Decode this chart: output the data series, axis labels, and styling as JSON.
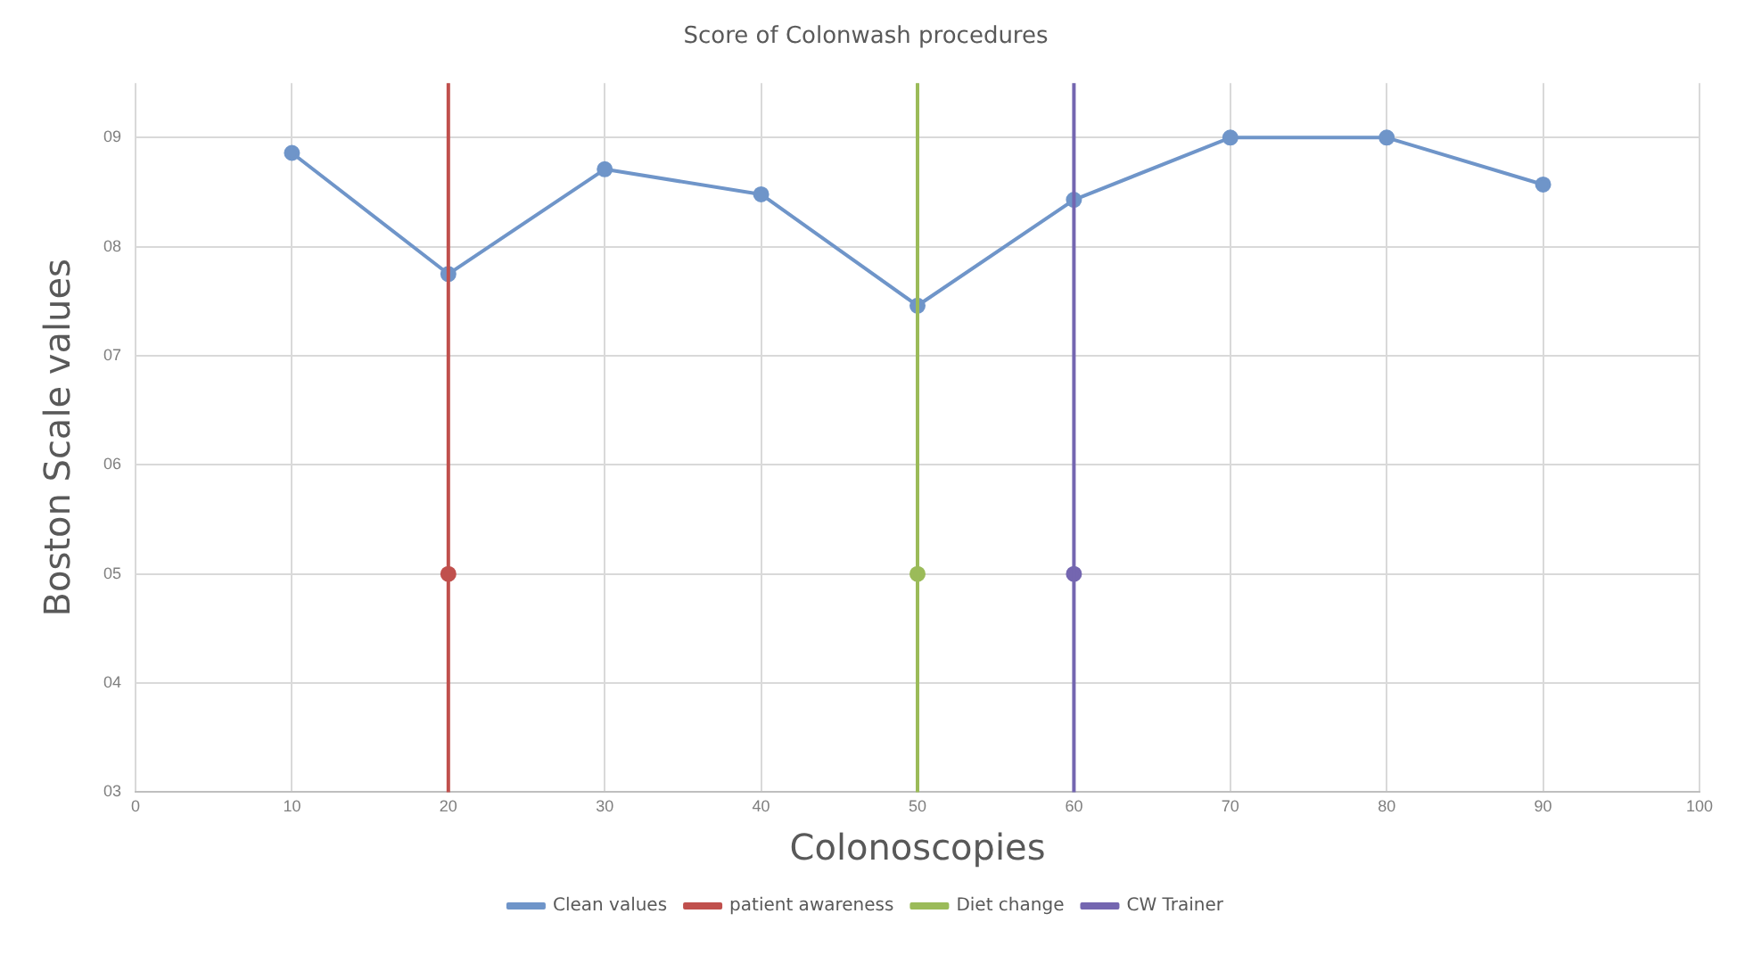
{
  "chart_data": {
    "type": "line",
    "title": "Score of Colonwash procedures",
    "xlabel": "Colonoscopies",
    "ylabel": "Boston Scale values",
    "xlim": [
      0,
      100
    ],
    "xticks": [
      0,
      10,
      20,
      30,
      40,
      50,
      60,
      70,
      80,
      90,
      100
    ],
    "ylim": [
      3,
      9.5
    ],
    "yticks": [
      {
        "value": 3,
        "label": "03"
      },
      {
        "value": 4,
        "label": "04"
      },
      {
        "value": 5,
        "label": "05"
      },
      {
        "value": 6,
        "label": "06"
      },
      {
        "value": 7,
        "label": "07"
      },
      {
        "value": 8,
        "label": "08"
      },
      {
        "value": 9,
        "label": "09"
      }
    ],
    "grid": true,
    "legend": "bottom",
    "marker": "circle",
    "line_style": "solid",
    "series": [
      {
        "name": "Clean values",
        "color": "#6f95c9",
        "x": [
          10,
          20,
          30,
          40,
          50,
          60,
          70,
          80,
          90
        ],
        "values": [
          8.86,
          7.75,
          8.71,
          8.48,
          7.46,
          8.43,
          9.0,
          9.0,
          8.57
        ]
      },
      {
        "name": "patient awareness",
        "color": "#c0504d",
        "x": [
          20
        ],
        "values": [
          5
        ]
      },
      {
        "name": "Diet change",
        "color": "#9bbb59",
        "x": [
          50
        ],
        "values": [
          5
        ]
      },
      {
        "name": "CW Trainer",
        "color": "#7466b0",
        "x": [
          60
        ],
        "values": [
          5
        ]
      }
    ],
    "ref_lines": [
      {
        "axis": "x",
        "value": 20,
        "color": "#c0504d"
      },
      {
        "axis": "x",
        "value": 50,
        "color": "#9bbb59"
      },
      {
        "axis": "x",
        "value": 60,
        "color": "#7466b0"
      }
    ]
  }
}
